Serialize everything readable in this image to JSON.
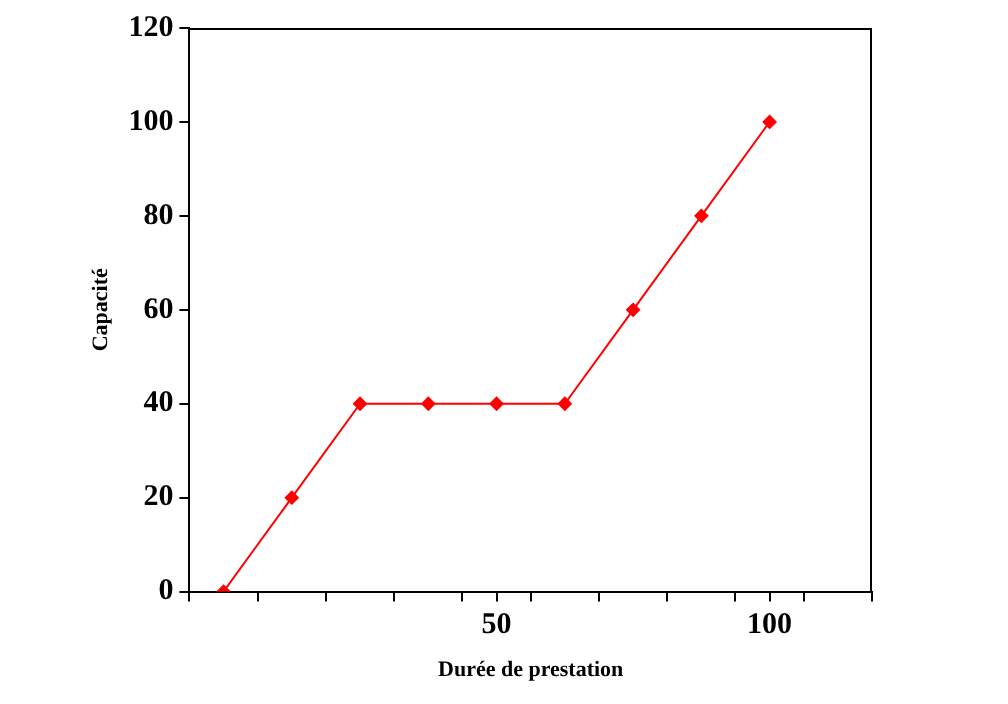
{
  "chart_data": {
    "type": "line",
    "xlabel": "Durée de prestation",
    "ylabel": "Capacité",
    "x": [
      0,
      12.5,
      25,
      37.5,
      50,
      62.5,
      75,
      87.5,
      100
    ],
    "series": [
      {
        "color": "#ff0000",
        "values": [
          0,
          20,
          40,
          40,
          40,
          40,
          60,
          80,
          100
        ]
      }
    ],
    "xlim": [
      -6.25,
      118.75
    ],
    "xticks": [
      {
        "value": -6.25,
        "label": null
      },
      {
        "value": 6.25,
        "label": null
      },
      {
        "value": 18.75,
        "label": null
      },
      {
        "value": 31.25,
        "label": null
      },
      {
        "value": 43.75,
        "label": null
      },
      {
        "value": 50,
        "label": "50"
      },
      {
        "value": 56.25,
        "label": null
      },
      {
        "value": 68.75,
        "label": null
      },
      {
        "value": 81.25,
        "label": null
      },
      {
        "value": 93.75,
        "label": null
      },
      {
        "value": 100,
        "label": "100"
      },
      {
        "value": 106.25,
        "label": null
      },
      {
        "value": 118.75,
        "label": null
      }
    ],
    "ylim": [
      0,
      120
    ],
    "yticks": [
      0,
      20,
      40,
      60,
      80,
      100,
      120
    ],
    "grid": false,
    "legend": false,
    "marker": "diamond",
    "line_style": "solid"
  }
}
